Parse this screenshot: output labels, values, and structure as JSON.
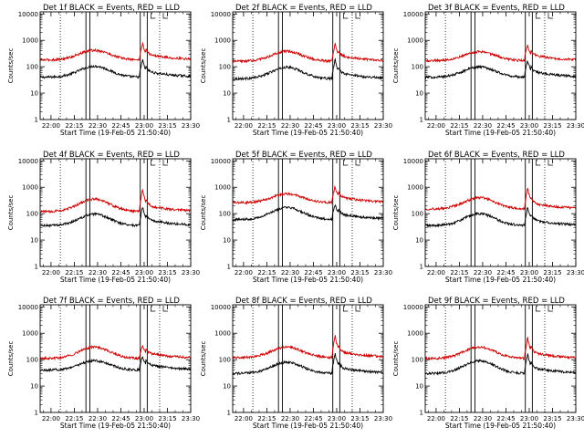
{
  "chart_data": [
    {
      "type": "line",
      "title": "Det 1f BLACK = Events, RED = LLD",
      "xlabel": "Start Time (19-Feb-05 21:50:40)",
      "ylabel": "Counts/sec",
      "yscale": "log",
      "ylim": [
        1,
        12000
      ],
      "x_ticks": [
        "22:00",
        "22:15",
        "22:30",
        "22:45",
        "23:00",
        "23:15",
        "23:30"
      ],
      "y_ticks": [
        "1",
        "10",
        "100",
        "1000",
        "10000"
      ],
      "series": [
        {
          "color": "#000000",
          "base": 40,
          "peak": 105,
          "flare": 190
        },
        {
          "color": "#cc0000",
          "base": 180,
          "peak": 420,
          "flare": 800
        }
      ]
    },
    {
      "type": "line",
      "title": "Det 2f BLACK = Events, RED = LLD",
      "xlabel": "Start Time (19-Feb-05 21:50:40)",
      "ylabel": "Counts/sec",
      "yscale": "log",
      "ylim": [
        1,
        12000
      ],
      "x_ticks": [
        "22:00",
        "22:15",
        "22:30",
        "22:45",
        "23:00",
        "23:15",
        "23:30"
      ],
      "y_ticks": [
        "1",
        "10",
        "100",
        "1000",
        "10000"
      ],
      "series": [
        {
          "color": "#000000",
          "base": 35,
          "peak": 95,
          "flare": 190
        },
        {
          "color": "#cc0000",
          "base": 160,
          "peak": 380,
          "flare": 750
        }
      ]
    },
    {
      "type": "line",
      "title": "Det 3f BLACK = Events, RED = LLD",
      "xlabel": "Start Time (19-Feb-05 21:50:40)",
      "ylabel": "Counts/sec",
      "yscale": "log",
      "ylim": [
        1,
        12000
      ],
      "x_ticks": [
        "22:00",
        "22:15",
        "22:30",
        "22:45",
        "23:00",
        "23:15",
        "23:30"
      ],
      "y_ticks": [
        "1",
        "10",
        "100",
        "1000",
        "10000"
      ],
      "series": [
        {
          "color": "#000000",
          "base": 40,
          "peak": 100,
          "flare": 180
        },
        {
          "color": "#cc0000",
          "base": 170,
          "peak": 370,
          "flare": 650
        }
      ]
    },
    {
      "type": "line",
      "title": "Det 4f BLACK = Events, RED = LLD",
      "xlabel": "Start Time (19-Feb-05 21:50:40)",
      "ylabel": "Counts/sec",
      "yscale": "log",
      "ylim": [
        1,
        12000
      ],
      "x_ticks": [
        "22:00",
        "22:15",
        "22:30",
        "22:45",
        "23:00",
        "23:15",
        "23:30"
      ],
      "y_ticks": [
        "1",
        "10",
        "100",
        "1000",
        "10000"
      ],
      "series": [
        {
          "color": "#000000",
          "base": 35,
          "peak": 95,
          "flare": 190
        },
        {
          "color": "#cc0000",
          "base": 120,
          "peak": 360,
          "flare": 950
        }
      ]
    },
    {
      "type": "line",
      "title": "Det 5f BLACK = Events, RED = LLD",
      "xlabel": "Start Time (19-Feb-05 21:50:40)",
      "ylabel": "Counts/sec",
      "yscale": "log",
      "ylim": [
        1,
        12000
      ],
      "x_ticks": [
        "22:00",
        "22:15",
        "22:30",
        "22:45",
        "23:00",
        "23:15",
        "23:30"
      ],
      "y_ticks": [
        "1",
        "10",
        "100",
        "1000",
        "10000"
      ],
      "series": [
        {
          "color": "#000000",
          "base": 60,
          "peak": 170,
          "flare": 230
        },
        {
          "color": "#cc0000",
          "base": 260,
          "peak": 560,
          "flare": 1100
        }
      ]
    },
    {
      "type": "line",
      "title": "Det 6f BLACK = Events, RED = LLD",
      "xlabel": "Start Time (19-Feb-05 21:50:40)",
      "ylabel": "Counts/sec",
      "yscale": "log",
      "ylim": [
        1,
        12000
      ],
      "x_ticks": [
        "22:00",
        "22:15",
        "22:30",
        "22:45",
        "23:00",
        "23:15",
        "23:30"
      ],
      "y_ticks": [
        "1",
        "10",
        "100",
        "1000",
        "10000"
      ],
      "series": [
        {
          "color": "#000000",
          "base": 35,
          "peak": 100,
          "flare": 180
        },
        {
          "color": "#cc0000",
          "base": 150,
          "peak": 400,
          "flare": 1000
        }
      ]
    },
    {
      "type": "line",
      "title": "Det 7f BLACK = Events, RED = LLD",
      "xlabel": "Start Time (19-Feb-05 21:50:40)",
      "ylabel": "Counts/sec",
      "yscale": "log",
      "ylim": [
        1,
        12000
      ],
      "x_ticks": [
        "22:00",
        "22:15",
        "22:30",
        "22:45",
        "23:00",
        "23:15",
        "23:30"
      ],
      "y_ticks": [
        "1",
        "10",
        "100",
        "1000",
        "10000"
      ],
      "series": [
        {
          "color": "#000000",
          "base": 40,
          "peak": 90,
          "flare": 130
        },
        {
          "color": "#cc0000",
          "base": 110,
          "peak": 300,
          "flare": 350
        }
      ]
    },
    {
      "type": "line",
      "title": "Det 8f BLACK = Events, RED = LLD",
      "xlabel": "Start Time (19-Feb-05 21:50:40)",
      "ylabel": "Counts/sec",
      "yscale": "log",
      "ylim": [
        1,
        12000
      ],
      "x_ticks": [
        "22:00",
        "22:15",
        "22:30",
        "22:45",
        "23:00",
        "23:15",
        "23:30"
      ],
      "y_ticks": [
        "1",
        "10",
        "100",
        "1000",
        "10000"
      ],
      "series": [
        {
          "color": "#000000",
          "base": 30,
          "peak": 80,
          "flare": 180
        },
        {
          "color": "#cc0000",
          "base": 120,
          "peak": 300,
          "flare": 900
        }
      ]
    },
    {
      "type": "line",
      "title": "Det 9f BLACK = Events, RED = LLD",
      "xlabel": "Start Time (19-Feb-05 21:50:40)",
      "ylabel": "Counts/sec",
      "yscale": "log",
      "ylim": [
        1,
        12000
      ],
      "x_ticks": [
        "22:00",
        "22:15",
        "22:30",
        "22:45",
        "23:00",
        "23:15",
        "23:30"
      ],
      "y_ticks": [
        "1",
        "10",
        "100",
        "1000",
        "10000"
      ],
      "series": [
        {
          "color": "#000000",
          "base": 30,
          "peak": 90,
          "flare": 170
        },
        {
          "color": "#cc0000",
          "base": 110,
          "peak": 300,
          "flare": 700
        }
      ]
    }
  ]
}
